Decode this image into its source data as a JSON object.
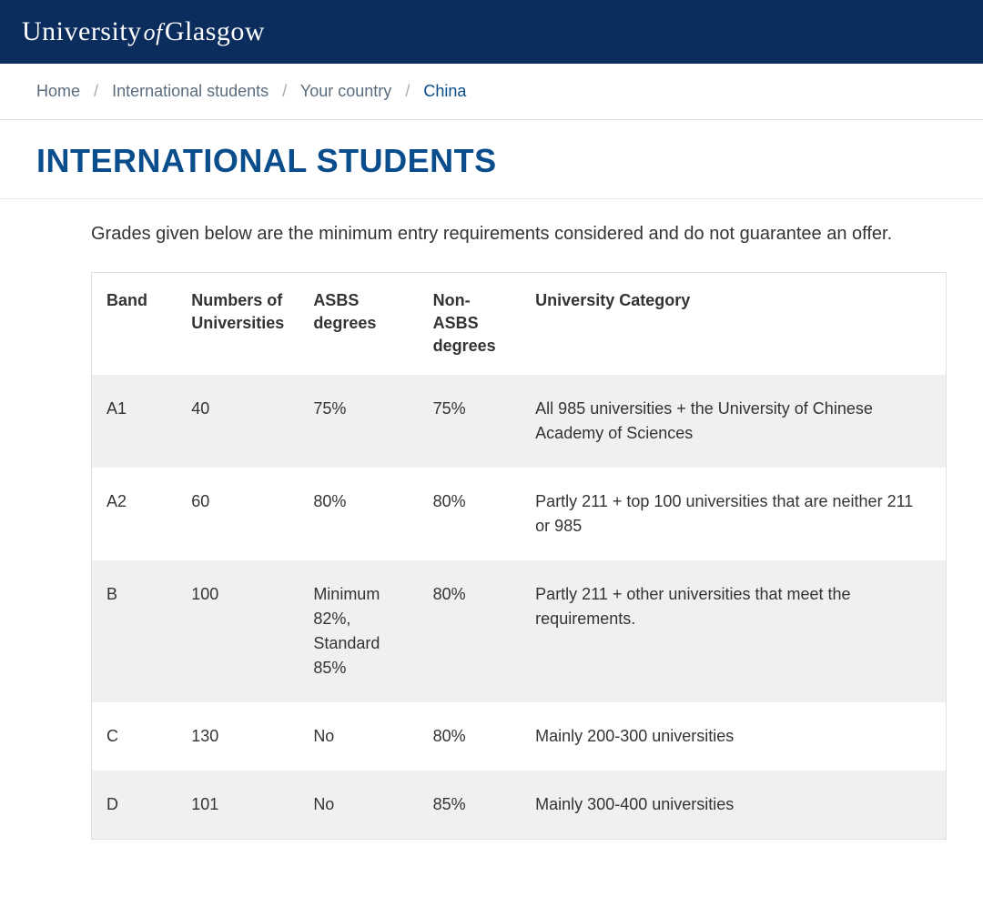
{
  "header": {
    "logo_university": "University",
    "logo_of": "of",
    "logo_glasgow": "Glasgow"
  },
  "breadcrumb": {
    "items": [
      {
        "label": "Home",
        "current": false
      },
      {
        "label": "International students",
        "current": false
      },
      {
        "label": "Your country",
        "current": false
      },
      {
        "label": "China",
        "current": true
      }
    ],
    "separator": "/"
  },
  "page": {
    "title": "INTERNATIONAL STUDENTS",
    "intro": "Grades given below are the minimum entry requirements considered and do not guarantee an offer."
  },
  "table": {
    "columns": [
      "Band",
      "Numbers of Universities",
      "ASBS degrees",
      "Non-ASBS degrees",
      "University Category"
    ],
    "rows": [
      {
        "band": "A1",
        "num": "40",
        "asbs": "75%",
        "nonasbs": "75%",
        "category": "All 985 universities + the University of Chinese Academy of Sciences"
      },
      {
        "band": "A2",
        "num": "60",
        "asbs": "80%",
        "nonasbs": "80%",
        "category": "Partly 211 + top 100 universities that are neither 211 or 985"
      },
      {
        "band": "B",
        "num": "100",
        "asbs": "Minimum 82%, Standard 85%",
        "nonasbs": "80%",
        "category": "Partly 211 + other universities that meet the requirements."
      },
      {
        "band": "C",
        "num": "130",
        "asbs": "No",
        "nonasbs": "80%",
        "category": "Mainly 200-300 universities"
      },
      {
        "band": "D",
        "num": "101",
        "asbs": "No",
        "nonasbs": "85%",
        "category": "Mainly 300-400 universities"
      }
    ]
  },
  "colors": {
    "header_bg": "#0a2d5e",
    "title_color": "#0a4d8c",
    "breadcrumb_current": "#0a4d8c",
    "breadcrumb_color": "#5a6c7d",
    "row_alt_bg": "#f0f0f0",
    "border_color": "#e0e0e0",
    "text_color": "#333333"
  }
}
